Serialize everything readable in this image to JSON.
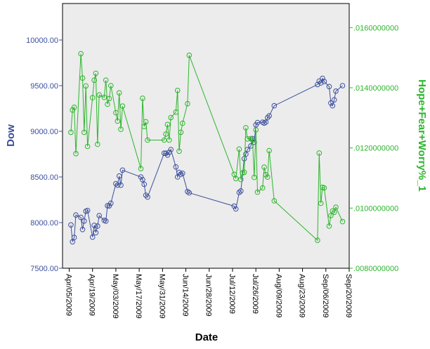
{
  "chart_data": {
    "type": "line",
    "xlabel": "Date",
    "x_ticks": [
      "Apr/05/2009",
      "Apr/19/2009",
      "May/03/2009",
      "May/17/2009",
      "May/31/2009",
      "Jun/14/2009",
      "Jun/28/2009",
      "Jul/12/2009",
      "Jul/26/2009",
      "Aug/09/2009",
      "Aug/23/2009",
      "Sep/06/2009",
      "Sep/20/2009"
    ],
    "x_range_days": [
      -4,
      168
    ],
    "x_origin_date": "Apr/05/2009",
    "axes": {
      "left": {
        "label": "Dow",
        "range": [
          7500,
          10400
        ],
        "ticks": [
          "7500.00",
          "8000.00",
          "8500.00",
          "9000.00",
          "9500.00",
          "10000.00"
        ],
        "color": "#3c4f9c"
      },
      "right": {
        "label": "Hope+Fear+Worry%_1",
        "range": [
          0.008,
          0.0168
        ],
        "ticks": [
          ".0080000000",
          ".0100000000",
          ".0120000000",
          ".0140000000",
          ".0160000000"
        ],
        "color": "#2db52d"
      }
    },
    "colors": {
      "plot_bg": "#ececec",
      "frame": "#000000"
    },
    "series": [
      {
        "name": "Dow",
        "axis": "left",
        "color": "#3c4f9c",
        "points": [
          [
            1,
            7975
          ],
          [
            2,
            7790
          ],
          [
            3,
            7837
          ],
          [
            4,
            8083
          ],
          [
            7,
            8057
          ],
          [
            8,
            7925
          ],
          [
            9,
            8017
          ],
          [
            10,
            8125
          ],
          [
            11,
            8132
          ],
          [
            14,
            7841
          ],
          [
            15,
            7970
          ],
          [
            16,
            7890
          ],
          [
            17,
            7962
          ],
          [
            18,
            8076
          ],
          [
            21,
            8025
          ],
          [
            22,
            8017
          ],
          [
            23,
            8185
          ],
          [
            24,
            8183
          ],
          [
            25,
            8212
          ],
          [
            28,
            8426
          ],
          [
            29,
            8410
          ],
          [
            30,
            8510
          ],
          [
            31,
            8410
          ],
          [
            32,
            8575
          ],
          [
            43,
            8500
          ],
          [
            44,
            8470
          ],
          [
            45,
            8420
          ],
          [
            46,
            8300
          ],
          [
            47,
            8280
          ],
          [
            57,
            8760
          ],
          [
            58,
            8760
          ],
          [
            59,
            8740
          ],
          [
            60,
            8770
          ],
          [
            61,
            8800
          ],
          [
            64,
            8610
          ],
          [
            65,
            8500
          ],
          [
            66,
            8550
          ],
          [
            67,
            8530
          ],
          [
            68,
            8540
          ],
          [
            71,
            8340
          ],
          [
            72,
            8326
          ],
          [
            99,
            8180
          ],
          [
            100,
            8150
          ],
          [
            102,
            8330
          ],
          [
            103,
            8347
          ],
          [
            105,
            8700
          ],
          [
            106,
            8750
          ],
          [
            107,
            8800
          ],
          [
            109,
            8840
          ],
          [
            110,
            8920
          ],
          [
            111,
            8880
          ],
          [
            112,
            9070
          ],
          [
            113,
            9096
          ],
          [
            116,
            9100
          ],
          [
            117,
            9090
          ],
          [
            118,
            9100
          ],
          [
            119,
            9150
          ],
          [
            120,
            9170
          ],
          [
            123,
            9280
          ],
          [
            149,
            9512
          ],
          [
            150,
            9550
          ],
          [
            151,
            9530
          ],
          [
            152,
            9580
          ],
          [
            153,
            9545
          ],
          [
            156,
            9490
          ],
          [
            157,
            9310
          ],
          [
            158,
            9280
          ],
          [
            159,
            9345
          ],
          [
            160,
            9440
          ],
          [
            164,
            9500
          ]
        ]
      },
      {
        "name": "Hope+Fear+Worry%_1",
        "axis": "right",
        "color": "#2db52d",
        "points": [
          [
            1,
            0.01252
          ],
          [
            2,
            0.01326
          ],
          [
            3,
            0.01335
          ],
          [
            4,
            0.01181
          ],
          [
            7,
            0.01513
          ],
          [
            8,
            0.01432
          ],
          [
            9,
            0.01252
          ],
          [
            10,
            0.01406
          ],
          [
            11,
            0.01205
          ],
          [
            14,
            0.01367
          ],
          [
            15,
            0.01425
          ],
          [
            16,
            0.01448
          ],
          [
            17,
            0.01212
          ],
          [
            18,
            0.01376
          ],
          [
            21,
            0.01368
          ],
          [
            22,
            0.01425
          ],
          [
            23,
            0.01345
          ],
          [
            24,
            0.01364
          ],
          [
            25,
            0.01407
          ],
          [
            28,
            0.01317
          ],
          [
            29,
            0.01289
          ],
          [
            30,
            0.01383
          ],
          [
            31,
            0.01262
          ],
          [
            32,
            0.01339
          ],
          [
            43,
            0.01131
          ],
          [
            44,
            0.01365
          ],
          [
            45,
            0.01271
          ],
          [
            46,
            0.01287
          ],
          [
            47,
            0.01226
          ],
          [
            57,
            0.01226
          ],
          [
            58,
            0.01246
          ],
          [
            59,
            0.01278
          ],
          [
            60,
            0.01226
          ],
          [
            61,
            0.01301
          ],
          [
            64,
            0.01319
          ],
          [
            65,
            0.01391
          ],
          [
            66,
            0.01189
          ],
          [
            67,
            0.01252
          ],
          [
            68,
            0.01282
          ],
          [
            71,
            0.01347
          ],
          [
            72,
            0.01508
          ],
          [
            99,
            0.01112
          ],
          [
            100,
            0.01098
          ],
          [
            102,
            0.01196
          ],
          [
            103,
            0.01095
          ],
          [
            104,
            0.01117
          ],
          [
            105,
            0.01119
          ],
          [
            106,
            0.01267
          ],
          [
            107,
            0.0123
          ],
          [
            109,
            0.01231
          ],
          [
            110,
            0.01226
          ],
          [
            111,
            0.01102
          ],
          [
            112,
            0.0126
          ],
          [
            113,
            0.01053
          ],
          [
            116,
            0.01067
          ],
          [
            117,
            0.01136
          ],
          [
            118,
            0.01111
          ],
          [
            119,
            0.01103
          ],
          [
            120,
            0.01191
          ],
          [
            123,
            0.01024
          ],
          [
            149,
            0.00893
          ],
          [
            150,
            0.01183
          ],
          [
            151,
            0.01016
          ],
          [
            152,
            0.01069
          ],
          [
            153,
            0.01067
          ],
          [
            156,
            0.0094
          ],
          [
            157,
            0.00975
          ],
          [
            158,
            0.0099
          ],
          [
            159,
            0.00986
          ],
          [
            160,
            0.01003
          ],
          [
            164,
            0.00955
          ]
        ]
      }
    ]
  }
}
